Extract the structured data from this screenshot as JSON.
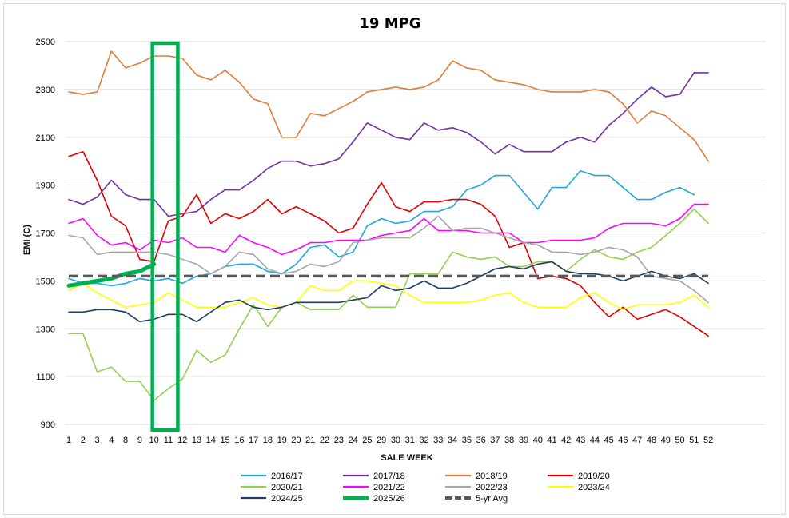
{
  "chart_data": {
    "type": "line",
    "title": "19 MPG",
    "xlabel": "SALE WEEK",
    "ylabel": "EMI (C)",
    "ylim": [
      900,
      2500
    ],
    "yticks": [
      "900",
      "1100",
      "1300",
      "1500",
      "1700",
      "1900",
      "2100",
      "2300",
      "2500"
    ],
    "x": [
      "1",
      "2",
      "3",
      "4",
      "8",
      "9",
      "10",
      "11",
      "12",
      "13",
      "14",
      "15",
      "16",
      "17",
      "18",
      "19",
      "20",
      "21",
      "22",
      "23",
      "24",
      "25",
      "29",
      "30",
      "31",
      "32",
      "33",
      "34",
      "35",
      "36",
      "37",
      "38",
      "39",
      "40",
      "41",
      "42",
      "43",
      "44",
      "45",
      "46",
      "47",
      "48",
      "49",
      "50",
      "51",
      "52"
    ],
    "grid": "horizontal",
    "legend_position": "bottom",
    "highlight": {
      "label": "10-11",
      "from_index": 6,
      "to_index": 7,
      "color": "#00b050"
    },
    "series": [
      {
        "name": "2016/17",
        "color": "#1fa7d8",
        "width": 1.6,
        "values": [
          1510,
          1490,
          1490,
          1480,
          1490,
          1510,
          1500,
          1510,
          1490,
          1520,
          1530,
          1560,
          1570,
          1570,
          1540,
          1530,
          1570,
          1640,
          1650,
          1600,
          1620,
          1730,
          1760,
          1740,
          1750,
          1790,
          1790,
          1810,
          1880,
          1900,
          1940,
          1940,
          1870,
          1800,
          1890,
          1890,
          1960,
          1940,
          1940,
          1890,
          1840,
          1840,
          1870,
          1890,
          1860,
          null
        ]
      },
      {
        "name": "2017/18",
        "color": "#7030a0",
        "width": 1.6,
        "values": [
          1840,
          1820,
          1850,
          1920,
          1860,
          1840,
          1840,
          1770,
          1780,
          1790,
          1840,
          1880,
          1880,
          1920,
          1970,
          2000,
          2000,
          1980,
          1990,
          2010,
          2080,
          2160,
          2130,
          2100,
          2090,
          2160,
          2130,
          2140,
          2120,
          2080,
          2030,
          2070,
          2040,
          2040,
          2040,
          2080,
          2100,
          2080,
          2150,
          2200,
          2260,
          2310,
          2270,
          2280,
          2370,
          2370
        ]
      },
      {
        "name": "2018/19",
        "color": "#e07b39",
        "width": 1.6,
        "values": [
          2290,
          2280,
          2290,
          2460,
          2390,
          2410,
          2440,
          2440,
          2430,
          2360,
          2340,
          2380,
          2330,
          2260,
          2240,
          2100,
          2100,
          2200,
          2190,
          2220,
          2250,
          2290,
          2300,
          2310,
          2300,
          2310,
          2340,
          2420,
          2390,
          2380,
          2340,
          2330,
          2320,
          2300,
          2290,
          2290,
          2290,
          2300,
          2290,
          2240,
          2160,
          2210,
          2190,
          2140,
          2090,
          2000
        ]
      },
      {
        "name": "2019/20",
        "color": "#e00000",
        "width": 1.6,
        "values": [
          2020,
          2040,
          1920,
          1770,
          1730,
          1590,
          1580,
          1750,
          1770,
          1860,
          1740,
          1780,
          1760,
          1790,
          1840,
          1780,
          1810,
          1780,
          1750,
          1700,
          1720,
          1820,
          1910,
          1810,
          1790,
          1830,
          1830,
          1840,
          1840,
          1820,
          1770,
          1640,
          1660,
          1510,
          1520,
          1510,
          1480,
          1410,
          1350,
          1390,
          1340,
          1360,
          1380,
          1350,
          1310,
          1270
        ]
      },
      {
        "name": "2020/21",
        "color": "#92d050",
        "width": 1.6,
        "values": [
          1280,
          1280,
          1120,
          1140,
          1080,
          1080,
          1000,
          1050,
          1090,
          1210,
          1160,
          1190,
          1300,
          1400,
          1310,
          1390,
          1410,
          1380,
          1380,
          1380,
          1440,
          1390,
          1390,
          1390,
          1530,
          1530,
          1530,
          1620,
          1600,
          1590,
          1600,
          1560,
          1560,
          1580,
          1580,
          1540,
          1590,
          1630,
          1600,
          1590,
          1620,
          1640,
          1690,
          1740,
          1800,
          1740
        ]
      },
      {
        "name": "2021/22",
        "color": "#ff00ff",
        "width": 1.6,
        "values": [
          1740,
          1760,
          1690,
          1650,
          1660,
          1630,
          1670,
          1660,
          1680,
          1640,
          1640,
          1620,
          1690,
          1660,
          1640,
          1610,
          1630,
          1660,
          1660,
          1670,
          1670,
          1670,
          1690,
          1700,
          1710,
          1760,
          1710,
          1710,
          1710,
          1700,
          1700,
          1700,
          1660,
          1660,
          1670,
          1670,
          1670,
          1680,
          1720,
          1740,
          1740,
          1740,
          1730,
          1760,
          1820,
          1820
        ]
      },
      {
        "name": "2022/23",
        "color": "#a6a6a6",
        "width": 1.6,
        "values": [
          1690,
          1680,
          1610,
          1620,
          1620,
          1620,
          1620,
          1610,
          1590,
          1570,
          1530,
          1560,
          1620,
          1610,
          1550,
          1530,
          1540,
          1570,
          1560,
          1580,
          1660,
          1670,
          1680,
          1680,
          1680,
          1720,
          1770,
          1710,
          1720,
          1720,
          1700,
          1680,
          1660,
          1650,
          1620,
          1620,
          1610,
          1620,
          1640,
          1630,
          1600,
          1520,
          1510,
          1500,
          1460,
          1410
        ]
      },
      {
        "name": "2023/24",
        "color": "#ffff00",
        "width": 1.6,
        "values": [
          1460,
          1490,
          1450,
          1420,
          1390,
          1400,
          1410,
          1450,
          1420,
          1390,
          1390,
          1390,
          1410,
          1430,
          1400,
          1390,
          1410,
          1480,
          1460,
          1460,
          1500,
          1500,
          1490,
          1480,
          1440,
          1410,
          1410,
          1410,
          1410,
          1420,
          1440,
          1450,
          1410,
          1390,
          1390,
          1390,
          1430,
          1450,
          1410,
          1380,
          1400,
          1400,
          1400,
          1410,
          1440,
          1390
        ]
      },
      {
        "name": "2024/25",
        "color": "#1f3f5f",
        "width": 1.6,
        "values": [
          1370,
          1370,
          1380,
          1380,
          1370,
          1330,
          1340,
          1360,
          1360,
          1330,
          1370,
          1410,
          1420,
          1390,
          1380,
          1390,
          1410,
          1410,
          1410,
          1410,
          1420,
          1430,
          1480,
          1460,
          1470,
          1500,
          1470,
          1470,
          1490,
          1520,
          1550,
          1560,
          1550,
          1570,
          1580,
          1540,
          1530,
          1530,
          1520,
          1500,
          1520,
          1540,
          1520,
          1510,
          1530,
          1490
        ]
      },
      {
        "name": "2025/26",
        "color": "#00b050",
        "width": 5,
        "values": [
          1480,
          1490,
          1500,
          1510,
          1530,
          1540,
          1570,
          null,
          null,
          null,
          null,
          null,
          null,
          null,
          null,
          null,
          null,
          null,
          null,
          null,
          null,
          null,
          null,
          null,
          null,
          null,
          null,
          null,
          null,
          null,
          null,
          null,
          null,
          null,
          null,
          null,
          null,
          null,
          null,
          null,
          null,
          null,
          null,
          null,
          null,
          null
        ]
      },
      {
        "name": "5-yr Avg",
        "color": "#595959",
        "width": 3.5,
        "dash": "12 6",
        "values": [
          1520,
          1520,
          1520,
          1520,
          1520,
          1520,
          1520,
          1520,
          1520,
          1520,
          1520,
          1520,
          1520,
          1520,
          1520,
          1520,
          1520,
          1520,
          1520,
          1520,
          1520,
          1520,
          1520,
          1520,
          1520,
          1520,
          1520,
          1520,
          1520,
          1520,
          1520,
          1520,
          1520,
          1520,
          1520,
          1520,
          1520,
          1520,
          1520,
          1520,
          1520,
          1520,
          1520,
          1520,
          1520,
          1520
        ]
      }
    ]
  }
}
